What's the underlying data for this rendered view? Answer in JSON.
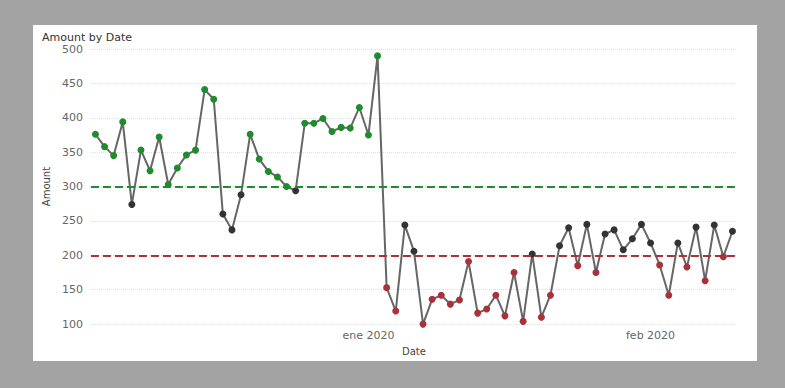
{
  "chart_data": {
    "type": "line",
    "title": "Amount by Date",
    "x_label": "Date",
    "y_label": "Amount",
    "categories": [
      null,
      null,
      null,
      null,
      null,
      null,
      null,
      null,
      null,
      null,
      null,
      null,
      null,
      null,
      null,
      null,
      null,
      null,
      null,
      null,
      null,
      null,
      null,
      null,
      null,
      null,
      null,
      null,
      null,
      null,
      "ene 2020",
      null,
      null,
      null,
      null,
      null,
      null,
      null,
      null,
      null,
      null,
      null,
      null,
      null,
      null,
      null,
      null,
      null,
      null,
      null,
      null,
      null,
      null,
      null,
      null,
      null,
      null,
      null,
      null,
      null,
      null,
      "feb 2020",
      null,
      null,
      null,
      null,
      null,
      null,
      null,
      null,
      null
    ],
    "values": [
      376,
      358,
      345,
      394,
      274,
      353,
      323,
      372,
      303,
      327,
      346,
      353,
      441,
      427,
      260,
      237,
      288,
      376,
      340,
      322,
      314,
      300,
      294,
      392,
      392,
      399,
      380,
      386,
      385,
      415,
      375,
      490,
      153,
      119,
      244,
      206,
      100,
      136,
      142,
      129,
      135,
      191,
      116,
      122,
      142,
      112,
      175,
      104,
      202,
      110,
      142,
      214,
      240,
      185,
      245,
      175,
      231,
      237,
      208,
      224,
      245,
      218,
      186,
      142,
      218,
      183,
      241,
      163,
      244,
      198,
      235
    ],
    "color": "#666666",
    "colors": [
      "#1f8b2c",
      "#1f8b2c",
      "#1f8b2c",
      "#1f8b2c",
      "#333333",
      "#1f8b2c",
      "#1f8b2c",
      "#1f8b2c",
      "#1f8b2c",
      "#1f8b2c",
      "#1f8b2c",
      "#1f8b2c",
      "#1f8b2c",
      "#1f8b2c",
      "#333333",
      "#333333",
      "#333333",
      "#1f8b2c",
      "#1f8b2c",
      "#1f8b2c",
      "#1f8b2c",
      "#1f8b2c",
      "#333333",
      "#1f8b2c",
      "#1f8b2c",
      "#1f8b2c",
      "#1f8b2c",
      "#1f8b2c",
      "#1f8b2c",
      "#1f8b2c",
      "#1f8b2c",
      "#1f8b2c",
      "#a8323a",
      "#a8323a",
      "#333333",
      "#333333",
      "#a8323a",
      "#a8323a",
      "#a8323a",
      "#a8323a",
      "#a8323a",
      "#a8323a",
      "#a8323a",
      "#a8323a",
      "#a8323a",
      "#a8323a",
      "#a8323a",
      "#a8323a",
      "#333333",
      "#a8323a",
      "#a8323a",
      "#333333",
      "#333333",
      "#a8323a",
      "#333333",
      "#a8323a",
      "#333333",
      "#333333",
      "#333333",
      "#333333",
      "#333333",
      "#333333",
      "#a8323a",
      "#a8323a",
      "#333333",
      "#a8323a",
      "#333333",
      "#a8323a",
      "#333333",
      "#a8323a",
      "#333333"
    ],
    "marker": "circle",
    "reference_lines": [
      {
        "value": 300,
        "color": "#1f8b2c",
        "line_style": "dashed"
      },
      {
        "value": 200,
        "color": "#a8323a",
        "line_style": "dashed"
      }
    ],
    "ylim": [
      100,
      500
    ],
    "yticks": [
      100,
      150,
      200,
      250,
      300,
      350,
      400,
      450,
      500
    ],
    "grid": true
  }
}
